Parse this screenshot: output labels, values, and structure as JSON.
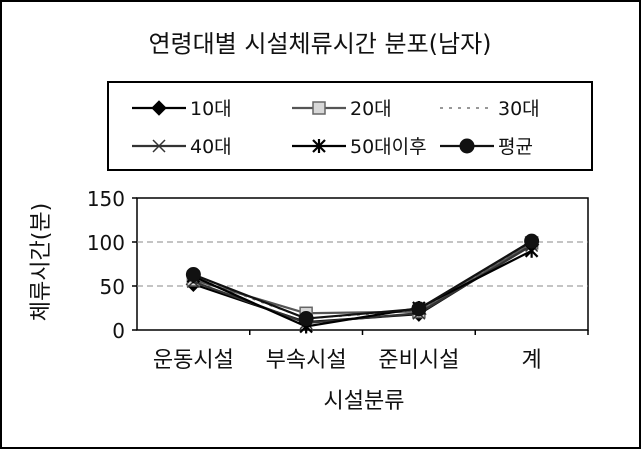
{
  "chart_data": {
    "type": "line",
    "title": "연령대별 시설체류시간 분포(남자)",
    "xlabel": "시설분류",
    "ylabel": "체류시간(분)",
    "categories": [
      "운동시설",
      "부속시설",
      "준비시설",
      "계"
    ],
    "ylim": [
      0,
      150
    ],
    "yticks": [
      0,
      50,
      100,
      150
    ],
    "grid": true,
    "legend_position": "top",
    "series": [
      {
        "name": "10대",
        "values": [
          52,
          9,
          18,
          97
        ],
        "marker": "diamond",
        "color": "#000000",
        "dash": "solid"
      },
      {
        "name": "20대",
        "values": [
          57,
          19,
          21,
          99
        ],
        "marker": "square-open",
        "color": "#555555",
        "dash": "solid"
      },
      {
        "name": "30대",
        "values": [
          60,
          13,
          22,
          100
        ],
        "marker": "none",
        "color": "#777777",
        "dash": "dotted"
      },
      {
        "name": "40대",
        "values": [
          55,
          8,
          19,
          96
        ],
        "marker": "x",
        "color": "#333333",
        "dash": "solid"
      },
      {
        "name": "50대이후",
        "values": [
          61,
          4,
          25,
          90
        ],
        "marker": "star",
        "color": "#000000",
        "dash": "solid"
      },
      {
        "name": "평균",
        "values": [
          63,
          13,
          24,
          101
        ],
        "marker": "circle",
        "color": "#111111",
        "dash": "solid"
      }
    ]
  }
}
